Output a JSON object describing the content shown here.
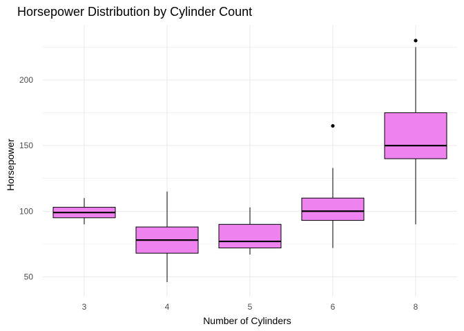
{
  "chart_data": {
    "type": "boxplot",
    "title": "Horsepower Distribution by Cylinder Count",
    "xlabel": "Number of Cylinders",
    "ylabel": "Horsepower",
    "categories": [
      "3",
      "4",
      "5",
      "6",
      "8"
    ],
    "ylim": [
      35,
      242
    ],
    "yticks": [
      50,
      100,
      150,
      200
    ],
    "grid": true,
    "box_fill": "#ee82ee",
    "box_stroke": "#000000",
    "grid_color": "#ebebeb",
    "boxes": [
      {
        "category": "3",
        "whisker_low": 90,
        "q1": 95,
        "median": 99,
        "q3": 103,
        "whisker_high": 110,
        "outliers": []
      },
      {
        "category": "4",
        "whisker_low": 46,
        "q1": 68,
        "median": 78,
        "q3": 88,
        "whisker_high": 115,
        "outliers": []
      },
      {
        "category": "5",
        "whisker_low": 67,
        "q1": 72,
        "median": 77,
        "q3": 90,
        "whisker_high": 103,
        "outliers": []
      },
      {
        "category": "6",
        "whisker_low": 72,
        "q1": 93,
        "median": 100,
        "q3": 110,
        "whisker_high": 133,
        "outliers": [
          165
        ]
      },
      {
        "category": "8",
        "whisker_low": 90,
        "q1": 140,
        "median": 150,
        "q3": 175,
        "whisker_high": 225,
        "outliers": [
          230
        ]
      }
    ]
  }
}
